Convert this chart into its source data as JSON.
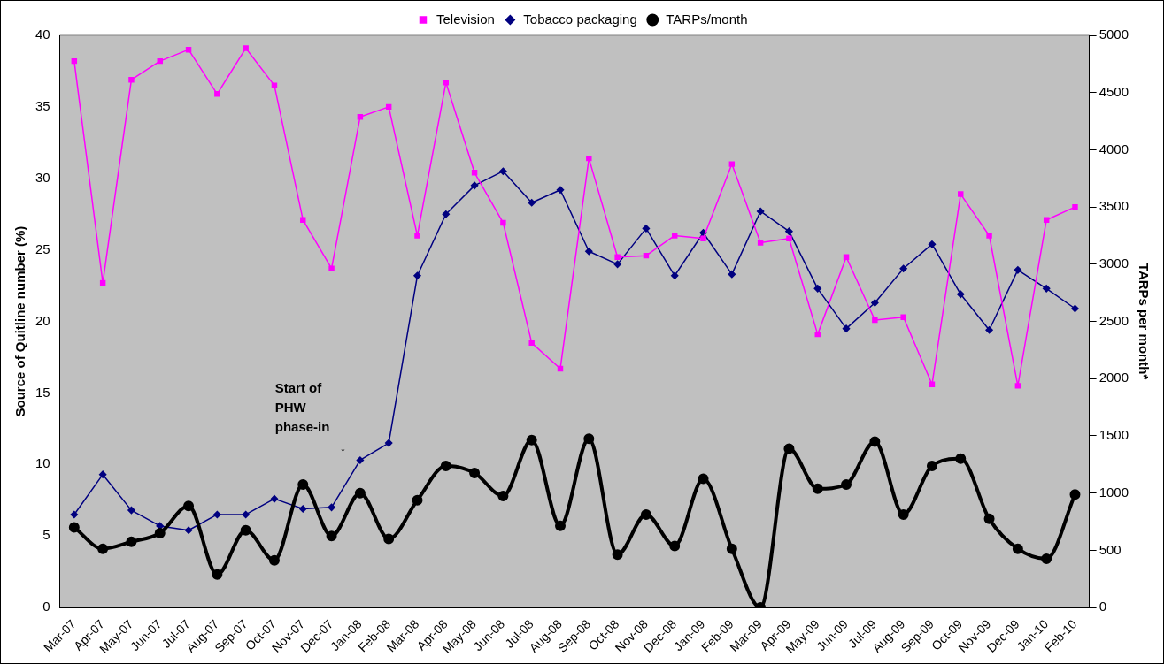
{
  "chart_data": {
    "type": "line",
    "ylabel": "Source of Quitline number (%)",
    "y2label": "TARPs per month*",
    "categories": [
      "Mar-07",
      "Apr-07",
      "May-07",
      "Jun-07",
      "Jul-07",
      "Aug-07",
      "Sep-07",
      "Oct-07",
      "Nov-07",
      "Dec-07",
      "Jan-08",
      "Feb-08",
      "Mar-08",
      "Apr-08",
      "May-08",
      "Jun-08",
      "Jul-08",
      "Aug-08",
      "Sep-08",
      "Oct-08",
      "Nov-08",
      "Dec-08",
      "Jan-09",
      "Feb-09",
      "Mar-09",
      "Apr-09",
      "May-09",
      "Jun-09",
      "Jul-09",
      "Aug-09",
      "Sep-09",
      "Oct-09",
      "Nov-09",
      "Dec-09",
      "Jan-10",
      "Feb-10"
    ],
    "series": [
      {
        "name": "Television",
        "color": "#ff00ff",
        "marker": "square",
        "values": [
          38.2,
          22.7,
          36.9,
          38.2,
          39.0,
          35.9,
          39.1,
          36.5,
          27.1,
          23.7,
          34.3,
          35.0,
          26.0,
          36.7,
          30.4,
          26.9,
          18.5,
          16.7,
          31.4,
          24.5,
          24.6,
          26.0,
          25.8,
          31.0,
          25.5,
          25.8,
          19.1,
          24.5,
          20.1,
          20.3,
          15.6,
          28.9,
          26.0,
          15.5,
          27.1,
          28.0
        ]
      },
      {
        "name": "Tobacco packaging",
        "color": "#000080",
        "marker": "diamond",
        "values": [
          6.5,
          9.3,
          6.8,
          5.7,
          5.4,
          6.5,
          6.5,
          7.6,
          6.9,
          7.0,
          10.3,
          11.5,
          23.2,
          27.5,
          29.5,
          30.5,
          28.3,
          29.2,
          24.9,
          24.0,
          26.5,
          23.2,
          26.2,
          23.3,
          27.7,
          26.3,
          22.3,
          19.5,
          21.3,
          23.7,
          25.4,
          21.9,
          19.4,
          23.6,
          22.3,
          20.9
        ]
      },
      {
        "name": "TARPs/month",
        "color": "#000000",
        "marker": "circle",
        "axis": "y2",
        "values": [
          700,
          513,
          575,
          650,
          888,
          288,
          675,
          413,
          1075,
          625,
          1000,
          600,
          938,
          1238,
          1175,
          975,
          1463,
          713,
          1475,
          463,
          813,
          538,
          1125,
          513,
          0,
          1388,
          1038,
          1075,
          1450,
          813,
          1238,
          1300,
          775,
          513,
          425,
          988
        ]
      }
    ],
    "ylim": [
      0,
      40
    ],
    "yticks": [
      0,
      5,
      10,
      15,
      20,
      25,
      30,
      35,
      40
    ],
    "y2lim": [
      0,
      5000
    ],
    "y2ticks": [
      0,
      500,
      1000,
      1500,
      2000,
      2500,
      3000,
      3500,
      4000,
      4500,
      5000
    ],
    "grid": false,
    "legend": "top",
    "line_style": "solid",
    "annotations": [
      "Start of\nPHW\nphase-in\n↓"
    ]
  }
}
